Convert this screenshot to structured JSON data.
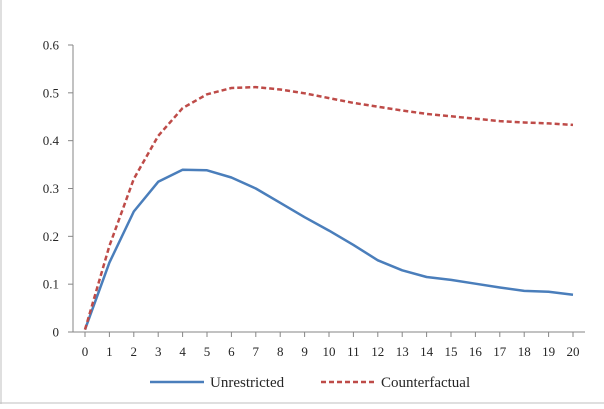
{
  "chart_data": {
    "type": "line",
    "title": "",
    "xlabel": "",
    "ylabel": "",
    "x": [
      0,
      1,
      2,
      3,
      4,
      5,
      6,
      7,
      8,
      9,
      10,
      11,
      12,
      13,
      14,
      15,
      16,
      17,
      18,
      19,
      20
    ],
    "ylim": [
      0,
      0.6
    ],
    "yticks": [
      "0",
      "0.1",
      "0.2",
      "0.3",
      "0.4",
      "0.5",
      "0.6"
    ],
    "grid": false,
    "legend_position": "bottom",
    "series": [
      {
        "name": "Unrestricted",
        "color": "#4a7ebb",
        "style": "solid",
        "values": [
          0.005,
          0.145,
          0.252,
          0.314,
          0.339,
          0.338,
          0.323,
          0.3,
          0.27,
          0.24,
          0.212,
          0.182,
          0.15,
          0.129,
          0.115,
          0.109,
          0.101,
          0.093,
          0.086,
          0.084,
          0.078
        ]
      },
      {
        "name": "Counterfactual",
        "color": "#be4b48",
        "style": "dashed",
        "values": [
          0.005,
          0.18,
          0.32,
          0.41,
          0.468,
          0.497,
          0.51,
          0.512,
          0.507,
          0.499,
          0.489,
          0.479,
          0.471,
          0.463,
          0.456,
          0.451,
          0.446,
          0.441,
          0.438,
          0.436,
          0.433
        ]
      }
    ]
  }
}
